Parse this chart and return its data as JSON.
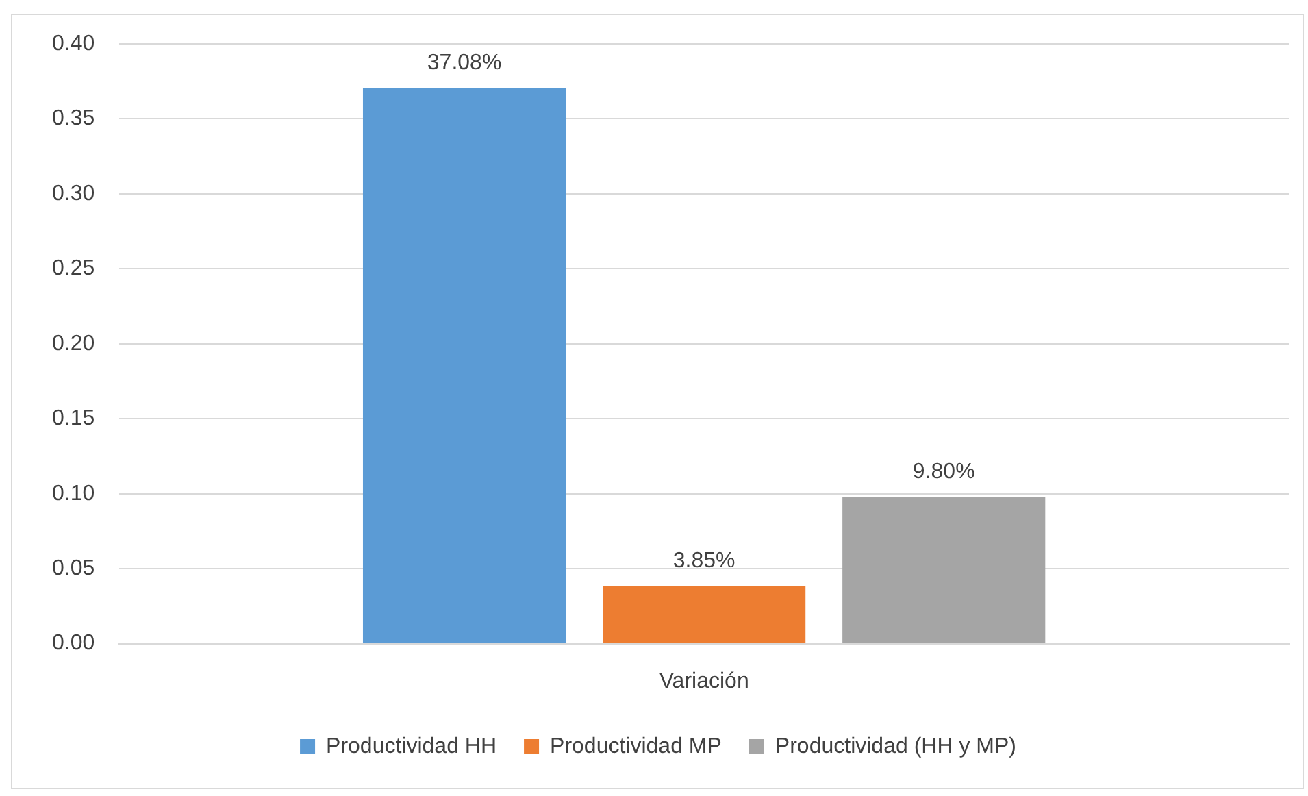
{
  "chart_data": {
    "type": "bar",
    "categories": [
      "Variación"
    ],
    "series": [
      {
        "name": "Productividad HH",
        "color": "#5b9bd5",
        "values": [
          0.3708
        ],
        "value_labels": [
          "37.08%"
        ]
      },
      {
        "name": "Productividad MP",
        "color": "#ed7d31",
        "values": [
          0.0385
        ],
        "value_labels": [
          "3.85%"
        ]
      },
      {
        "name": "Productividad (HH y MP)",
        "color": "#a5a5a5",
        "values": [
          0.098
        ],
        "value_labels": [
          "9.80%"
        ]
      }
    ],
    "ylim": [
      0,
      0.4
    ],
    "yticks": [
      {
        "value": 0,
        "label": "0.00"
      },
      {
        "value": 0.05,
        "label": "0.05"
      },
      {
        "value": 0.1,
        "label": "0.10"
      },
      {
        "value": 0.15,
        "label": "0.15"
      },
      {
        "value": 0.2,
        "label": "0.20"
      },
      {
        "value": 0.25,
        "label": "0.25"
      },
      {
        "value": 0.3,
        "label": "0.30"
      },
      {
        "value": 0.35,
        "label": "0.35"
      },
      {
        "value": 0.4,
        "label": "0.40"
      }
    ],
    "grid": "y",
    "legend": "bottom"
  }
}
